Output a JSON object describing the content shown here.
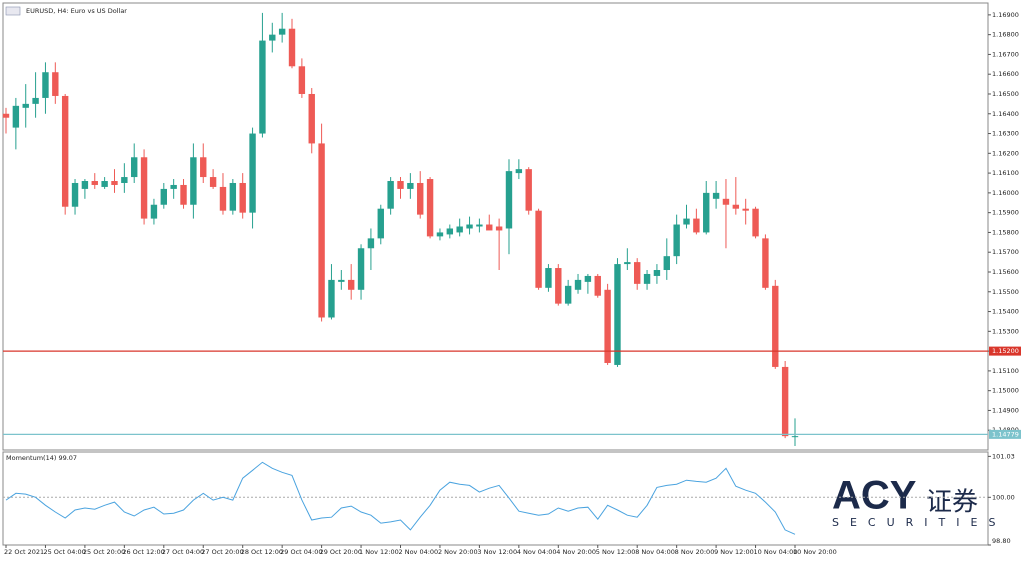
{
  "chart_data": [
    {
      "type": "candlestick",
      "title": "EURUSD, H4:  Euro vs US Dollar",
      "categories": [
        "22 Oct 2021",
        null,
        null,
        null,
        "25 Oct 04:00",
        null,
        null,
        null,
        "25 Oct 20:00",
        null,
        null,
        null,
        "26 Oct 12:00",
        null,
        null,
        null,
        "27 Oct 04:00",
        null,
        null,
        null,
        "27 Oct 20:00",
        null,
        null,
        null,
        "28 Oct 12:00",
        null,
        null,
        null,
        "29 Oct 04:00",
        null,
        null,
        null,
        "29 Oct 20:00",
        null,
        null,
        null,
        "1 Nov 12:00",
        null,
        null,
        null,
        "2 Nov 04:00",
        null,
        null,
        null,
        "2 Nov 20:00",
        null,
        null,
        null,
        "3 Nov 12:00",
        null,
        null,
        null,
        "4 Nov 04:00",
        null,
        null,
        null,
        "4 Nov 20:00",
        null,
        null,
        null,
        "5 Nov 12:00",
        null,
        null,
        null,
        "8 Nov 04:00",
        null,
        null,
        null,
        "8 Nov 20:00",
        null,
        null,
        null,
        "9 Nov 12:00",
        null,
        null,
        null,
        "10 Nov 04:00",
        null,
        null,
        null,
        "10 Nov 20:00"
      ],
      "open": [
        1.164,
        1.1633,
        1.1643,
        1.1645,
        1.1648,
        1.1661,
        1.1649,
        1.1593,
        1.1602,
        1.1606,
        1.1603,
        1.1606,
        1.1605,
        1.1608,
        1.1618,
        1.1587,
        1.1594,
        1.1602,
        1.1604,
        1.1594,
        1.1618,
        1.1608,
        1.1603,
        1.1591,
        1.1605,
        1.159,
        1.163,
        1.1677,
        1.168,
        1.1683,
        1.1664,
        1.165,
        1.1625,
        1.1537,
        1.1555,
        1.1556,
        1.1551,
        1.1572,
        1.1577,
        1.1592,
        1.1606,
        1.1602,
        1.1605,
        1.1607,
        1.1578,
        1.1579,
        1.158,
        1.1582,
        1.1583,
        1.1584,
        1.1583,
        1.1582,
        1.161,
        1.1612,
        1.1591,
        1.1552,
        1.1562,
        1.1544,
        1.1551,
        1.1555,
        1.1558,
        1.1551,
        1.1513,
        1.1564,
        1.1565,
        1.1554,
        1.1558,
        1.1561,
        1.1568,
        1.1584,
        1.1587,
        1.158,
        1.1597,
        1.1597,
        1.1594,
        1.1592,
        1.1592,
        1.1577,
        1.1553,
        1.1512,
        1.1477
      ],
      "high": [
        1.1643,
        1.1648,
        1.1655,
        1.1661,
        1.1666,
        1.1666,
        1.165,
        1.1607,
        1.1607,
        1.161,
        1.1608,
        1.1612,
        1.1615,
        1.1625,
        1.1622,
        1.1597,
        1.1605,
        1.1607,
        1.1607,
        1.1625,
        1.1625,
        1.1612,
        1.161,
        1.1607,
        1.161,
        1.1633,
        1.1691,
        1.1686,
        1.1691,
        1.1688,
        1.1668,
        1.1653,
        1.1635,
        1.1564,
        1.1561,
        1.1564,
        1.1574,
        1.1582,
        1.1594,
        1.1608,
        1.1608,
        1.161,
        1.1611,
        1.1608,
        1.1582,
        1.1584,
        1.1587,
        1.1588,
        1.1587,
        1.1589,
        1.1587,
        1.1617,
        1.1617,
        1.1613,
        1.1592,
        1.1564,
        1.1564,
        1.1556,
        1.1559,
        1.1559,
        1.1559,
        1.1554,
        1.1567,
        1.1572,
        1.1567,
        1.1561,
        1.1564,
        1.1577,
        1.1589,
        1.1594,
        1.1592,
        1.1606,
        1.1606,
        1.1607,
        1.1608,
        1.1597,
        1.1593,
        1.1579,
        1.1556,
        1.1515,
        1.1486
      ],
      "low": [
        1.163,
        1.1622,
        1.1633,
        1.1638,
        1.164,
        1.1645,
        1.1589,
        1.1589,
        1.1597,
        1.1602,
        1.1602,
        1.16,
        1.16,
        1.1605,
        1.1584,
        1.1584,
        1.1592,
        1.1597,
        1.1592,
        1.1587,
        1.1605,
        1.1602,
        1.1589,
        1.1589,
        1.1587,
        1.1582,
        1.1628,
        1.1671,
        1.1676,
        1.1663,
        1.1648,
        1.162,
        1.1535,
        1.1536,
        1.1551,
        1.1546,
        1.1546,
        1.1561,
        1.1574,
        1.1589,
        1.1597,
        1.1597,
        1.1587,
        1.1577,
        1.1576,
        1.1577,
        1.1578,
        1.1579,
        1.158,
        1.1582,
        1.1561,
        1.1569,
        1.1607,
        1.1589,
        1.1551,
        1.155,
        1.1543,
        1.1543,
        1.1549,
        1.1549,
        1.1547,
        1.1513,
        1.1512,
        1.1561,
        1.1551,
        1.1551,
        1.1554,
        1.1556,
        1.1564,
        1.1582,
        1.1579,
        1.1579,
        1.1592,
        1.1572,
        1.1589,
        1.1584,
        1.1577,
        1.1551,
        1.1511,
        1.1476,
        1.1472
      ],
      "close": [
        1.1638,
        1.1644,
        1.1645,
        1.1648,
        1.1661,
        1.1649,
        1.1593,
        1.1605,
        1.1606,
        1.1604,
        1.1606,
        1.1604,
        1.1608,
        1.1618,
        1.1587,
        1.1594,
        1.1602,
        1.1604,
        1.1594,
        1.1618,
        1.1608,
        1.1603,
        1.1591,
        1.1605,
        1.159,
        1.163,
        1.1677,
        1.168,
        1.1683,
        1.1664,
        1.165,
        1.1625,
        1.1537,
        1.1556,
        1.1556,
        1.1551,
        1.1572,
        1.1577,
        1.1592,
        1.1606,
        1.1602,
        1.1605,
        1.1589,
        1.1578,
        1.158,
        1.1582,
        1.1583,
        1.1584,
        1.1584,
        1.1581,
        1.1581,
        1.1611,
        1.1612,
        1.1591,
        1.1552,
        1.1562,
        1.1544,
        1.1553,
        1.1556,
        1.1558,
        1.1548,
        1.1514,
        1.1564,
        1.1565,
        1.1554,
        1.1559,
        1.1561,
        1.1568,
        1.1584,
        1.1587,
        1.158,
        1.16,
        1.16,
        1.1594,
        1.1592,
        1.1591,
        1.1578,
        1.1552,
        1.1512,
        1.1477,
        1.1477
      ],
      "up_color": "#26a08f",
      "down_color": "#ee5a55",
      "ylim": [
        1.147,
        1.1696
      ],
      "yticks": [
        {
          "value": 1.148,
          "label": "1.14800"
        },
        {
          "value": 1.149,
          "label": "1.14900"
        },
        {
          "value": 1.15,
          "label": "1.15000"
        },
        {
          "value": 1.151,
          "label": "1.15100"
        },
        {
          "value": 1.152,
          "label": "1.15200"
        },
        {
          "value": 1.153,
          "label": "1.15300"
        },
        {
          "value": 1.154,
          "label": "1.15400"
        },
        {
          "value": 1.155,
          "label": "1.15500"
        },
        {
          "value": 1.156,
          "label": "1.15600"
        },
        {
          "value": 1.157,
          "label": "1.15700"
        },
        {
          "value": 1.158,
          "label": "1.15800"
        },
        {
          "value": 1.159,
          "label": "1.15900"
        },
        {
          "value": 1.16,
          "label": "1.16000"
        },
        {
          "value": 1.161,
          "label": "1.16100"
        },
        {
          "value": 1.162,
          "label": "1.16200"
        },
        {
          "value": 1.163,
          "label": "1.16300"
        },
        {
          "value": 1.164,
          "label": "1.16400"
        },
        {
          "value": 1.165,
          "label": "1.16500"
        },
        {
          "value": 1.166,
          "label": "1.16600"
        },
        {
          "value": 1.167,
          "label": "1.16700"
        },
        {
          "value": 1.168,
          "label": "1.16800"
        },
        {
          "value": 1.169,
          "label": "1.16900"
        }
      ],
      "hlines": [
        {
          "value": 1.152,
          "label": "1.15200",
          "color": "#d9362b"
        },
        {
          "value": 1.14779,
          "label": "1.14779",
          "color": "#7cc3cc"
        }
      ],
      "logo": {
        "brand": "ACY",
        "brand_cn": "证券",
        "tagline": "SECURITIES"
      }
    },
    {
      "type": "line",
      "title": "Momentum(14) 99.07",
      "series": [
        {
          "color": "#4aa3df",
          "values": [
            99.93,
            100.1,
            100.08,
            100.0,
            99.8,
            99.63,
            99.48,
            99.68,
            99.73,
            99.7,
            99.8,
            99.88,
            99.63,
            99.53,
            99.68,
            99.75,
            99.58,
            99.6,
            99.68,
            99.93,
            100.1,
            99.93,
            100.0,
            99.93,
            100.48,
            100.68,
            100.88,
            100.73,
            100.63,
            100.55,
            99.93,
            99.43,
            99.48,
            99.5,
            99.73,
            99.78,
            99.63,
            99.55,
            99.35,
            99.38,
            99.43,
            99.18,
            99.5,
            99.8,
            100.18,
            100.38,
            100.33,
            100.3,
            100.13,
            100.23,
            100.3,
            99.98,
            99.65,
            99.6,
            99.55,
            99.58,
            99.73,
            99.65,
            99.73,
            99.75,
            99.45,
            99.8,
            99.68,
            99.55,
            99.5,
            99.8,
            100.25,
            100.3,
            100.33,
            100.43,
            100.4,
            100.38,
            100.48,
            100.73,
            100.28,
            100.18,
            100.1,
            99.88,
            99.63,
            99.18,
            99.07
          ]
        }
      ],
      "ylim": [
        98.8,
        101.14
      ],
      "yticks": [
        {
          "value": 98.8,
          "label": "98.80"
        },
        {
          "value": 100,
          "label": "100.00"
        },
        101.03
      ],
      "level": 100
    }
  ]
}
